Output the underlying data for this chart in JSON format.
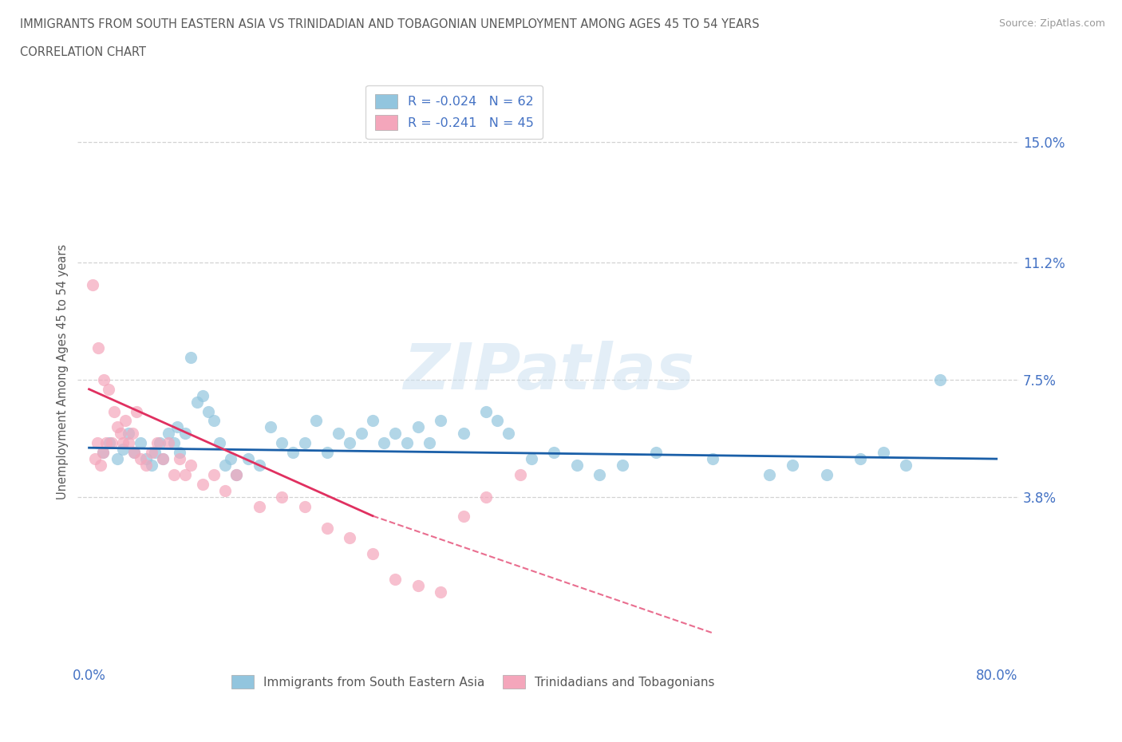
{
  "title_line1": "IMMIGRANTS FROM SOUTH EASTERN ASIA VS TRINIDADIAN AND TOBAGONIAN UNEMPLOYMENT AMONG AGES 45 TO 54 YEARS",
  "title_line2": "CORRELATION CHART",
  "source": "Source: ZipAtlas.com",
  "ylabel": "Unemployment Among Ages 45 to 54 years",
  "xlim": [
    -1.0,
    82.0
  ],
  "ylim": [
    -1.5,
    17.0
  ],
  "yticks": [
    3.8,
    7.5,
    11.2,
    15.0
  ],
  "watermark": "ZIPatlas",
  "legend_label1": "Immigrants from South Eastern Asia",
  "legend_label2": "Trinidadians and Tobagonians",
  "blue_color": "#92c5de",
  "pink_color": "#f4a6bb",
  "trend_blue_color": "#1a5fa8",
  "trend_pink_color": "#e03060",
  "title_color": "#595959",
  "axis_label_color": "#4472c4",
  "grid_color": "#c8c8c8",
  "blue_scatter_x": [
    1.2,
    1.8,
    2.5,
    3.0,
    3.5,
    4.0,
    4.5,
    5.0,
    5.5,
    5.8,
    6.2,
    6.5,
    7.0,
    7.5,
    7.8,
    8.0,
    8.5,
    9.0,
    9.5,
    10.0,
    10.5,
    11.0,
    11.5,
    12.0,
    12.5,
    13.0,
    14.0,
    15.0,
    16.0,
    17.0,
    18.0,
    19.0,
    20.0,
    21.0,
    22.0,
    23.0,
    24.0,
    25.0,
    26.0,
    27.0,
    28.0,
    29.0,
    30.0,
    31.0,
    33.0,
    35.0,
    36.0,
    37.0,
    39.0,
    41.0,
    43.0,
    45.0,
    47.0,
    50.0,
    55.0,
    60.0,
    62.0,
    65.0,
    68.0,
    70.0,
    72.0,
    75.0
  ],
  "blue_scatter_y": [
    5.2,
    5.5,
    5.0,
    5.3,
    5.8,
    5.2,
    5.5,
    5.0,
    4.8,
    5.2,
    5.5,
    5.0,
    5.8,
    5.5,
    6.0,
    5.2,
    5.8,
    8.2,
    6.8,
    7.0,
    6.5,
    6.2,
    5.5,
    4.8,
    5.0,
    4.5,
    5.0,
    4.8,
    6.0,
    5.5,
    5.2,
    5.5,
    6.2,
    5.2,
    5.8,
    5.5,
    5.8,
    6.2,
    5.5,
    5.8,
    5.5,
    6.0,
    5.5,
    6.2,
    5.8,
    6.5,
    6.2,
    5.8,
    5.0,
    5.2,
    4.8,
    4.5,
    4.8,
    5.2,
    5.0,
    4.5,
    4.8,
    4.5,
    5.0,
    5.2,
    4.8,
    7.5
  ],
  "pink_scatter_x": [
    0.3,
    0.5,
    0.7,
    0.8,
    1.0,
    1.2,
    1.3,
    1.5,
    1.7,
    2.0,
    2.2,
    2.5,
    2.8,
    3.0,
    3.2,
    3.5,
    3.8,
    4.0,
    4.2,
    4.5,
    5.0,
    5.5,
    6.0,
    6.5,
    7.0,
    7.5,
    8.0,
    8.5,
    9.0,
    10.0,
    11.0,
    12.0,
    13.0,
    15.0,
    17.0,
    19.0,
    21.0,
    23.0,
    25.0,
    27.0,
    29.0,
    31.0,
    33.0,
    35.0,
    38.0
  ],
  "pink_scatter_y": [
    10.5,
    5.0,
    5.5,
    8.5,
    4.8,
    5.2,
    7.5,
    5.5,
    7.2,
    5.5,
    6.5,
    6.0,
    5.8,
    5.5,
    6.2,
    5.5,
    5.8,
    5.2,
    6.5,
    5.0,
    4.8,
    5.2,
    5.5,
    5.0,
    5.5,
    4.5,
    5.0,
    4.5,
    4.8,
    4.2,
    4.5,
    4.0,
    4.5,
    3.5,
    3.8,
    3.5,
    2.8,
    2.5,
    2.0,
    1.2,
    1.0,
    0.8,
    3.2,
    3.8,
    4.5
  ],
  "blue_trend_x0": 0,
  "blue_trend_x1": 80,
  "blue_trend_y0": 5.35,
  "blue_trend_y1": 5.0,
  "pink_solid_x0": 0,
  "pink_solid_x1": 25,
  "pink_solid_y0": 7.2,
  "pink_solid_y1": 3.2,
  "pink_dash_x0": 25,
  "pink_dash_x1": 55,
  "pink_dash_y0": 3.2,
  "pink_dash_y1": -0.5
}
